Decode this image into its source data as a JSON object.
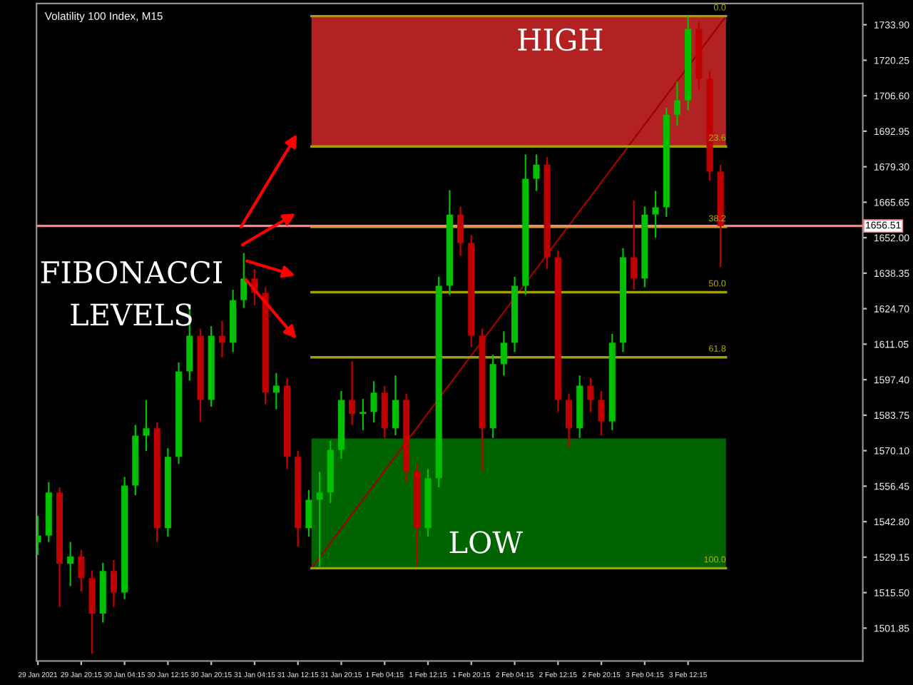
{
  "chart_data": {
    "type": "candlestick",
    "title": "Volatility 100 Index, M15",
    "x": [
      "2021-01-29T12:15",
      "2021-01-29T14:15",
      "2021-01-29T16:15",
      "2021-01-29T18:15",
      "2021-01-29T20:15",
      "2021-01-29T22:15",
      "2021-01-30T00:15",
      "2021-01-30T02:15",
      "2021-01-30T04:15",
      "2021-01-30T06:15",
      "2021-01-30T08:15",
      "2021-01-30T10:15",
      "2021-01-30T12:15",
      "2021-01-30T14:15",
      "2021-01-30T16:15",
      "2021-01-30T18:15",
      "2021-01-30T20:15",
      "2021-01-30T22:15",
      "2021-01-31T00:15",
      "2021-01-31T02:15",
      "2021-01-31T04:15",
      "2021-01-31T06:15",
      "2021-01-31T08:15",
      "2021-01-31T10:15",
      "2021-01-31T12:15",
      "2021-01-31T14:15",
      "2021-01-31T16:15",
      "2021-01-31T18:15",
      "2021-01-31T20:15",
      "2021-01-31T22:15",
      "2021-02-01T00:15",
      "2021-02-01T02:15",
      "2021-02-01T04:15",
      "2021-02-01T06:15",
      "2021-02-01T08:15",
      "2021-02-01T10:15",
      "2021-02-01T12:15",
      "2021-02-01T14:15",
      "2021-02-01T16:15",
      "2021-02-01T18:15",
      "2021-02-01T20:15",
      "2021-02-01T22:15",
      "2021-02-02T00:15",
      "2021-02-02T02:15",
      "2021-02-02T04:15",
      "2021-02-02T06:15",
      "2021-02-02T08:15",
      "2021-02-02T10:15",
      "2021-02-02T12:15",
      "2021-02-02T14:15",
      "2021-02-02T16:15",
      "2021-02-02T18:15",
      "2021-02-02T20:15",
      "2021-02-02T22:15",
      "2021-02-03T00:15",
      "2021-02-03T02:15",
      "2021-02-03T04:15",
      "2021-02-03T06:15",
      "2021-02-03T08:15",
      "2021-02-03T10:15",
      "2021-02-03T12:15",
      "2021-02-03T14:15",
      "2021-02-03T16:15",
      "2021-02-03T18:15"
    ],
    "ohlc": [
      [
        1534.8,
        1545.0,
        1530.0,
        1537.5
      ],
      [
        1537.5,
        1558.0,
        1535.0,
        1554.0
      ],
      [
        1554.0,
        1556.0,
        1510.1,
        1526.6
      ],
      [
        1526.6,
        1535.0,
        1518.0,
        1529.4
      ],
      [
        1529.4,
        1532.0,
        1516.0,
        1521.1
      ],
      [
        1521.1,
        1524.0,
        1492.0,
        1507.4
      ],
      [
        1507.4,
        1527.0,
        1504.0,
        1523.8
      ],
      [
        1523.8,
        1528.0,
        1510.0,
        1515.6
      ],
      [
        1515.6,
        1560.0,
        1513.0,
        1556.7
      ],
      [
        1556.7,
        1580.0,
        1553.0,
        1575.9
      ],
      [
        1575.9,
        1589.6,
        1570.0,
        1578.7
      ],
      [
        1578.7,
        1581.0,
        1535.0,
        1540.3
      ],
      [
        1540.3,
        1571.0,
        1537.0,
        1567.7
      ],
      [
        1567.7,
        1604.0,
        1565.0,
        1600.6
      ],
      [
        1600.6,
        1625.3,
        1597.0,
        1614.3
      ],
      [
        1614.3,
        1617.0,
        1581.4,
        1589.6
      ],
      [
        1589.6,
        1618.0,
        1587.0,
        1614.3
      ],
      [
        1614.3,
        1620.0,
        1606.0,
        1611.6
      ],
      [
        1611.6,
        1632.0,
        1608.0,
        1628.0
      ],
      [
        1628.0,
        1646.1,
        1625.0,
        1636.3
      ],
      [
        1636.3,
        1640.0,
        1626.0,
        1630.8
      ],
      [
        1630.8,
        1633.0,
        1588.0,
        1592.4
      ],
      [
        1592.4,
        1600.0,
        1586.0,
        1595.1
      ],
      [
        1595.1,
        1598.0,
        1563.0,
        1567.7
      ],
      [
        1567.7,
        1570.0,
        1533.2,
        1540.3
      ],
      [
        1540.3,
        1555.0,
        1537.0,
        1551.2
      ],
      [
        1551.2,
        1562.0,
        1525.5,
        1554.0
      ],
      [
        1554.0,
        1574.0,
        1550.0,
        1570.4
      ],
      [
        1570.4,
        1593.0,
        1567.0,
        1589.6
      ],
      [
        1589.6,
        1604.5,
        1580.0,
        1584.2
      ],
      [
        1584.2,
        1590.0,
        1578.0,
        1585.0
      ],
      [
        1585.0,
        1596.8,
        1581.0,
        1592.4
      ],
      [
        1592.4,
        1595.0,
        1575.0,
        1578.7
      ],
      [
        1578.7,
        1599.0,
        1576.0,
        1589.6
      ],
      [
        1589.6,
        1592.0,
        1558.0,
        1562.2
      ],
      [
        1562.2,
        1565.0,
        1525.5,
        1540.3
      ],
      [
        1540.3,
        1563.0,
        1537.0,
        1559.5
      ],
      [
        1559.5,
        1637.0,
        1556.0,
        1633.5
      ],
      [
        1633.5,
        1670.3,
        1630.0,
        1660.9
      ],
      [
        1660.9,
        1664.0,
        1645.0,
        1650.0
      ],
      [
        1650.0,
        1653.0,
        1610.0,
        1614.3
      ],
      [
        1614.3,
        1617.0,
        1562.2,
        1578.7
      ],
      [
        1578.7,
        1607.0,
        1575.0,
        1603.4
      ],
      [
        1603.4,
        1616.0,
        1599.0,
        1611.6
      ],
      [
        1611.6,
        1637.0,
        1608.0,
        1633.5
      ],
      [
        1633.5,
        1684.0,
        1630.0,
        1674.7
      ],
      [
        1674.7,
        1684.0,
        1670.0,
        1680.1
      ],
      [
        1680.1,
        1683.0,
        1640.0,
        1644.5
      ],
      [
        1644.5,
        1647.0,
        1585.0,
        1589.6
      ],
      [
        1589.6,
        1592.0,
        1571.5,
        1578.7
      ],
      [
        1578.7,
        1599.0,
        1575.0,
        1595.1
      ],
      [
        1595.1,
        1598.0,
        1585.0,
        1589.6
      ],
      [
        1589.6,
        1593.0,
        1575.9,
        1581.4
      ],
      [
        1581.4,
        1615.0,
        1578.0,
        1611.6
      ],
      [
        1611.6,
        1648.0,
        1608.0,
        1644.5
      ],
      [
        1644.5,
        1666.4,
        1632.0,
        1636.3
      ],
      [
        1636.3,
        1664.0,
        1633.0,
        1660.9
      ],
      [
        1660.9,
        1670.0,
        1652.0,
        1663.7
      ],
      [
        1663.7,
        1702.0,
        1660.0,
        1699.3
      ],
      [
        1699.3,
        1712.0,
        1695.0,
        1704.8
      ],
      [
        1704.8,
        1737.2,
        1701.0,
        1732.3
      ],
      [
        1732.3,
        1735.0,
        1709.0,
        1713.1
      ],
      [
        1713.1,
        1716.0,
        1674.0,
        1677.4
      ],
      [
        1677.4,
        1680.0,
        1640.7,
        1656.5
      ]
    ],
    "colors": [
      "#00c000",
      "#00c000",
      "#c00000",
      "#00c000",
      "#c00000",
      "#c00000",
      "#00c000",
      "#c00000",
      "#00c000",
      "#00c000",
      "#00c000",
      "#c00000",
      "#00c000",
      "#00c000",
      "#00c000",
      "#c00000",
      "#00c000",
      "#c00000",
      "#00c000",
      "#00c000",
      "#c00000",
      "#c00000",
      "#00c000",
      "#c00000",
      "#c00000",
      "#00c000",
      "#00c000",
      "#00c000",
      "#00c000",
      "#c00000",
      "#00c000",
      "#00c000",
      "#c00000",
      "#00c000",
      "#c00000",
      "#c00000",
      "#00c000",
      "#00c000",
      "#00c000",
      "#c00000",
      "#c00000",
      "#c00000",
      "#00c000",
      "#00c000",
      "#00c000",
      "#00c000",
      "#00c000",
      "#c00000",
      "#c00000",
      "#c00000",
      "#00c000",
      "#c00000",
      "#c00000",
      "#00c000",
      "#00c000",
      "#c00000",
      "#00c000",
      "#00c000",
      "#00c000",
      "#00c000",
      "#00c000",
      "#c00000",
      "#c00000",
      "#c00000"
    ],
    "series": [
      {
        "type": "line",
        "color": "#a00000",
        "x": [
          "2021-01-31T14:45",
          "2021-02-03T19:15"
        ],
        "values": [
          1524.9,
          1737.2
        ]
      }
    ],
    "bands": [
      {
        "axis": "y",
        "from": 1687.1,
        "to": 1737.2,
        "label": "HIGH",
        "color": "#b22222"
      },
      {
        "axis": "y",
        "from": 1524.9,
        "to": 1574.8,
        "label": "LOW",
        "color": "#006400"
      }
    ],
    "ref_lines": [
      {
        "axis": "y",
        "value": 1737.2,
        "color": "#a0a000"
      },
      {
        "axis": "y",
        "value": 1687.1,
        "color": "#a0a000"
      },
      {
        "axis": "y",
        "value": 1656.1,
        "color": "#a0a000"
      },
      {
        "axis": "y",
        "value": 1631.05,
        "color": "#a0a000"
      },
      {
        "axis": "y",
        "value": 1606.0,
        "color": "#a0a000"
      },
      {
        "axis": "y",
        "value": 1524.9,
        "color": "#a0a000"
      },
      {
        "axis": "y",
        "value": 1656.51,
        "label": "1656.51",
        "color": "#ff8080"
      }
    ],
    "annotations": [
      "FIBONACCI\nLEVELS",
      {
        "text": "0.0",
        "x": "2021-02-03T19:15",
        "y": 1737.2
      },
      {
        "text": "23.6",
        "x": "2021-02-03T19:15",
        "y": 1687.1
      },
      {
        "text": "38.2",
        "x": "2021-02-03T19:15",
        "y": 1656.1
      },
      {
        "text": "50.0",
        "x": "2021-02-03T19:15",
        "y": 1631.05
      },
      {
        "text": "61.8",
        "x": "2021-02-03T19:15",
        "y": 1606.0
      },
      {
        "text": "100.0",
        "x": "2021-02-03T19:15",
        "y": 1524.9
      }
    ],
    "xlim": [
      "2021-01-29T12:00",
      "2021-02-04T20:30"
    ],
    "xticks": [
      {
        "value": "2021-01-29T12:15",
        "label": "29 Jan 2021"
      },
      {
        "value": "2021-01-29T20:15",
        "label": "29 Jan 20:15"
      },
      {
        "value": "2021-01-30T04:15",
        "label": "30 Jan 04:15"
      },
      {
        "value": "2021-01-30T12:15",
        "label": "30 Jan 12:15"
      },
      {
        "value": "2021-01-30T20:15",
        "label": "30 Jan 20:15"
      },
      {
        "value": "2021-01-31T04:15",
        "label": "31 Jan 04:15"
      },
      {
        "value": "2021-01-31T12:15",
        "label": "31 Jan 12:15"
      },
      {
        "value": "2021-01-31T20:15",
        "label": "31 Jan 20:15"
      },
      {
        "value": "2021-02-01T04:15",
        "label": "1 Feb 04:15"
      },
      {
        "value": "2021-02-01T12:15",
        "label": "1 Feb 12:15"
      },
      {
        "value": "2021-02-01T20:15",
        "label": "1 Feb 20:15"
      },
      {
        "value": "2021-02-02T04:15",
        "label": "2 Feb 04:15"
      },
      {
        "value": "2021-02-02T12:15",
        "label": "2 Feb 12:15"
      },
      {
        "value": "2021-02-02T20:15",
        "label": "2 Feb 20:15"
      },
      {
        "value": "2021-02-03T04:15",
        "label": "3 Feb 04:15"
      },
      {
        "value": "2021-02-03T12:15",
        "label": "3 Feb 12:15"
      }
    ],
    "ylim": [
      1489.2,
      1742.1
    ],
    "yticks": [
      {
        "value": 1733.9,
        "label": "1733.90"
      },
      {
        "value": 1720.25,
        "label": "1720.25"
      },
      {
        "value": 1706.6,
        "label": "1706.60"
      },
      {
        "value": 1692.95,
        "label": "1692.95"
      },
      {
        "value": 1679.3,
        "label": "1679.30"
      },
      {
        "value": 1665.65,
        "label": "1665.65"
      },
      {
        "value": 1652.0,
        "label": "1652.00"
      },
      {
        "value": 1638.35,
        "label": "1638.35"
      },
      {
        "value": 1624.7,
        "label": "1624.70"
      },
      {
        "value": 1611.05,
        "label": "1611.05"
      },
      {
        "value": 1597.4,
        "label": "1597.40"
      },
      {
        "value": 1583.75,
        "label": "1583.75"
      },
      {
        "value": 1570.1,
        "label": "1570.10"
      },
      {
        "value": 1556.45,
        "label": "1556.45"
      },
      {
        "value": 1542.8,
        "label": "1542.80"
      },
      {
        "value": 1529.15,
        "label": "1529.15"
      },
      {
        "value": 1515.5,
        "label": "1515.50"
      },
      {
        "value": 1501.85,
        "label": "1501.85"
      }
    ],
    "grid": false,
    "legend": false
  }
}
